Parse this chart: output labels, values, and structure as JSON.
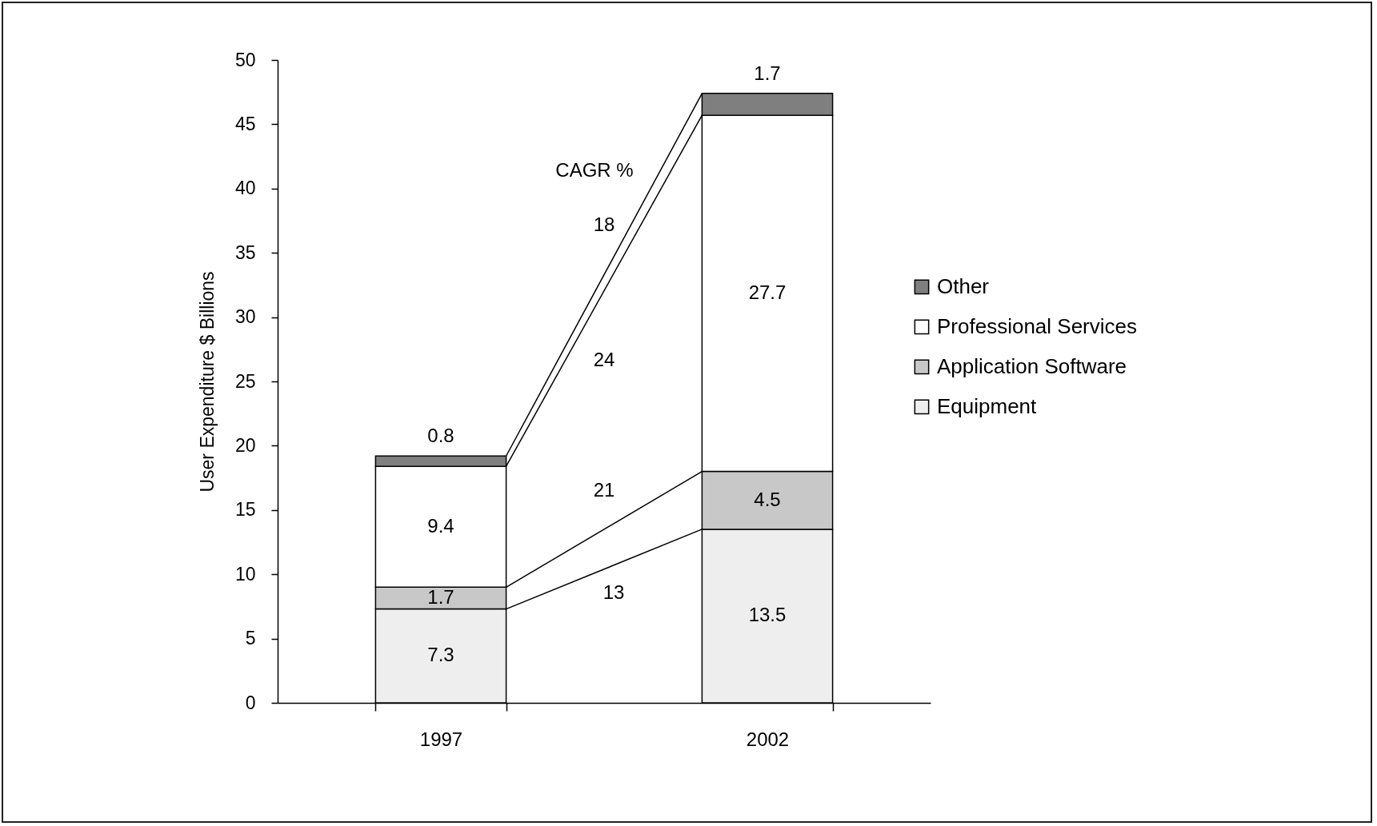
{
  "chart_data": {
    "type": "bar",
    "stacked": true,
    "categories": [
      "1997",
      "2002"
    ],
    "series": [
      {
        "name": "Equipment",
        "color": "#eeeeee",
        "values": [
          7.3,
          13.5
        ]
      },
      {
        "name": "Application Software",
        "color": "#c8c8c8",
        "values": [
          1.7,
          4.5
        ]
      },
      {
        "name": "Professional Services",
        "color": "#ffffff",
        "values": [
          9.4,
          27.7
        ]
      },
      {
        "name": "Other",
        "color": "#7f7f7f",
        "values": [
          0.8,
          1.7
        ]
      }
    ],
    "ylabel": "User Expenditure $ Billions",
    "ylim": [
      0,
      50
    ],
    "yticks": [
      0,
      5,
      10,
      15,
      20,
      25,
      30,
      35,
      40,
      45,
      50
    ],
    "data_labels": true,
    "legend": "right",
    "annotations": [
      "CAGR %",
      "18",
      "24",
      "21",
      "13"
    ]
  }
}
